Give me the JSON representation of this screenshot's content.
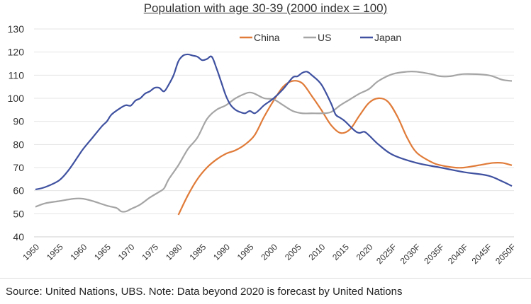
{
  "chart_data": {
    "type": "line",
    "title": "Population with age 30-39 (2000 index = 100)",
    "xlabel": "",
    "ylabel": "",
    "ylim": [
      40,
      130
    ],
    "yticks": [
      40,
      50,
      60,
      70,
      80,
      90,
      100,
      110,
      120,
      130
    ],
    "xlim": [
      1950,
      2050
    ],
    "xticks": [
      "1950",
      "1955",
      "1960",
      "1965",
      "1970",
      "1975",
      "1980",
      "1985",
      "1990",
      "1995",
      "2000",
      "2005",
      "2010",
      "2015",
      "2020",
      "2025F",
      "2030F",
      "2035F",
      "2040F",
      "2045F",
      "2050F"
    ],
    "grid": true,
    "legend_position": "top-center",
    "series": [
      {
        "name": "China",
        "color": "#E07B39",
        "points": [
          [
            1980,
            49.5
          ],
          [
            1982,
            58
          ],
          [
            1984,
            65
          ],
          [
            1986,
            70
          ],
          [
            1988,
            73.5
          ],
          [
            1990,
            76
          ],
          [
            1992,
            77.5
          ],
          [
            1994,
            80
          ],
          [
            1996,
            84
          ],
          [
            1998,
            92
          ],
          [
            2000,
            99
          ],
          [
            2002,
            105
          ],
          [
            2004,
            107.5
          ],
          [
            2006,
            106.5
          ],
          [
            2008,
            101
          ],
          [
            2010,
            95
          ],
          [
            2012,
            88.5
          ],
          [
            2014,
            85
          ],
          [
            2016,
            86.5
          ],
          [
            2018,
            92.5
          ],
          [
            2020,
            98
          ],
          [
            2022,
            100
          ],
          [
            2024,
            98.5
          ],
          [
            2026,
            92
          ],
          [
            2028,
            83
          ],
          [
            2030,
            76.5
          ],
          [
            2033,
            72.5
          ],
          [
            2035,
            71
          ],
          [
            2038,
            70
          ],
          [
            2040,
            70
          ],
          [
            2043,
            71
          ],
          [
            2046,
            72
          ],
          [
            2048,
            72
          ],
          [
            2050,
            71
          ]
        ]
      },
      {
        "name": "US",
        "color": "#A5A5A5",
        "points": [
          [
            1950,
            53
          ],
          [
            1952,
            54.5
          ],
          [
            1955,
            55.5
          ],
          [
            1958,
            56.5
          ],
          [
            1960,
            56.5
          ],
          [
            1962,
            55.5
          ],
          [
            1965,
            53.5
          ],
          [
            1967,
            52.5
          ],
          [
            1968,
            51
          ],
          [
            1969,
            51
          ],
          [
            1970,
            52
          ],
          [
            1972,
            54
          ],
          [
            1974,
            57
          ],
          [
            1976,
            59.5
          ],
          [
            1977,
            61
          ],
          [
            1978,
            65
          ],
          [
            1980,
            71
          ],
          [
            1982,
            78
          ],
          [
            1984,
            83
          ],
          [
            1986,
            91
          ],
          [
            1988,
            95
          ],
          [
            1990,
            97
          ],
          [
            1992,
            100
          ],
          [
            1994,
            102
          ],
          [
            1995,
            102.5
          ],
          [
            1996,
            102
          ],
          [
            1998,
            100
          ],
          [
            2000,
            99.5
          ],
          [
            2002,
            97
          ],
          [
            2004,
            94.5
          ],
          [
            2006,
            93.5
          ],
          [
            2008,
            93.5
          ],
          [
            2010,
            93.5
          ],
          [
            2012,
            94
          ],
          [
            2014,
            97
          ],
          [
            2016,
            99.5
          ],
          [
            2018,
            102
          ],
          [
            2020,
            104
          ],
          [
            2022,
            107.5
          ],
          [
            2025,
            110.5
          ],
          [
            2028,
            111.5
          ],
          [
            2030,
            111.5
          ],
          [
            2033,
            110.5
          ],
          [
            2035,
            109.5
          ],
          [
            2037,
            109.5
          ],
          [
            2040,
            110.5
          ],
          [
            2045,
            110
          ],
          [
            2048,
            108
          ],
          [
            2050,
            107.5
          ]
        ]
      },
      {
        "name": "Japan",
        "color": "#3F51A0",
        "points": [
          [
            1950,
            60.5
          ],
          [
            1952,
            61.5
          ],
          [
            1955,
            64.5
          ],
          [
            1957,
            69
          ],
          [
            1959,
            75
          ],
          [
            1960,
            78
          ],
          [
            1962,
            83
          ],
          [
            1964,
            88
          ],
          [
            1965,
            90
          ],
          [
            1966,
            93
          ],
          [
            1968,
            96
          ],
          [
            1969,
            97
          ],
          [
            1970,
            96.8
          ],
          [
            1971,
            99
          ],
          [
            1972,
            100
          ],
          [
            1973,
            102
          ],
          [
            1974,
            103
          ],
          [
            1975,
            104.5
          ],
          [
            1976,
            104.5
          ],
          [
            1977,
            103
          ],
          [
            1978,
            106
          ],
          [
            1979,
            110
          ],
          [
            1980,
            116
          ],
          [
            1981,
            118.5
          ],
          [
            1982,
            119
          ],
          [
            1983,
            118.5
          ],
          [
            1984,
            118
          ],
          [
            1985,
            116.5
          ],
          [
            1986,
            117
          ],
          [
            1987,
            118
          ],
          [
            1988,
            113
          ],
          [
            1989,
            107
          ],
          [
            1990,
            101
          ],
          [
            1991,
            97
          ],
          [
            1992,
            95
          ],
          [
            1993,
            94
          ],
          [
            1994,
            93.5
          ],
          [
            1995,
            94.5
          ],
          [
            1996,
            93.5
          ],
          [
            1997,
            95
          ],
          [
            1998,
            97
          ],
          [
            2000,
            100
          ],
          [
            2002,
            104
          ],
          [
            2004,
            109
          ],
          [
            2005,
            109.5
          ],
          [
            2006,
            111
          ],
          [
            2007,
            111.5
          ],
          [
            2008,
            110
          ],
          [
            2010,
            106
          ],
          [
            2012,
            98
          ],
          [
            2013,
            93
          ],
          [
            2014,
            91.5
          ],
          [
            2015,
            90
          ],
          [
            2017,
            86
          ],
          [
            2018,
            85
          ],
          [
            2019,
            85.5
          ],
          [
            2020,
            84
          ],
          [
            2022,
            80
          ],
          [
            2025,
            75.5
          ],
          [
            2030,
            72
          ],
          [
            2035,
            70
          ],
          [
            2040,
            68
          ],
          [
            2045,
            66.5
          ],
          [
            2048,
            64
          ],
          [
            2050,
            62
          ]
        ]
      }
    ],
    "source": "Source: United Nations, UBS. Note: Data beyond 2020 is forecast by United Nations"
  }
}
